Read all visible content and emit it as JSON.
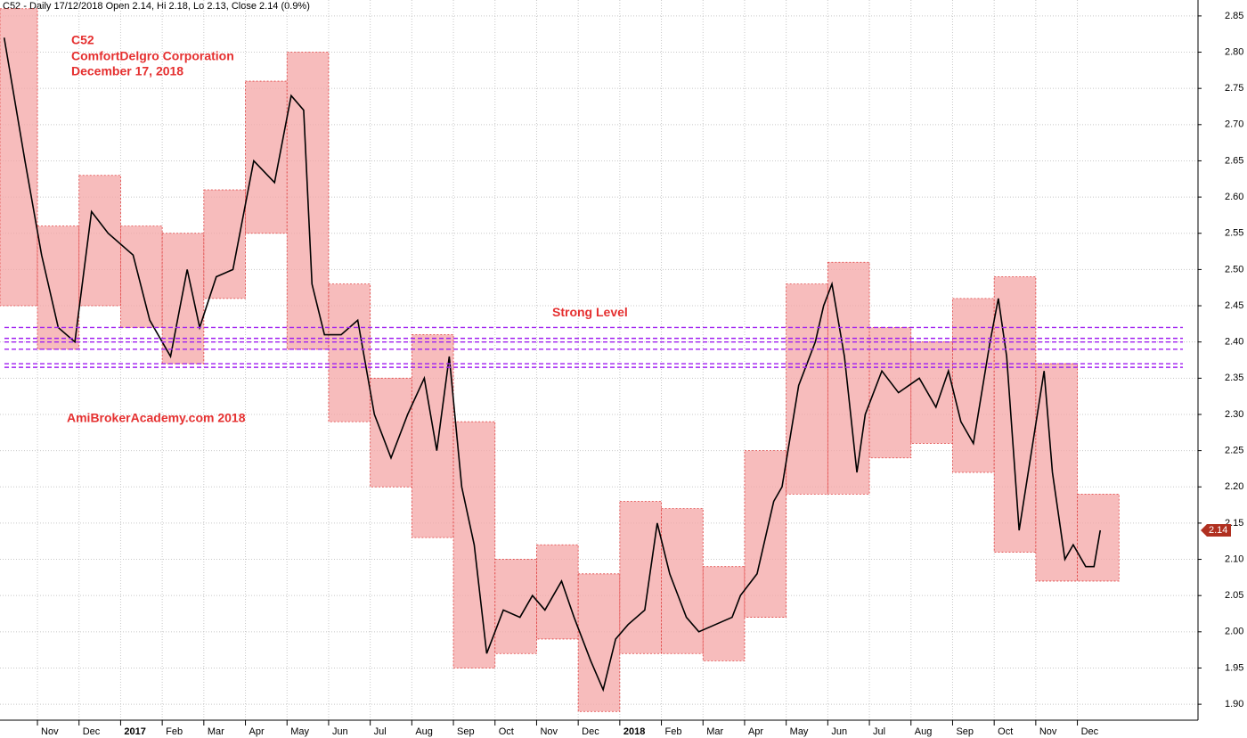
{
  "chart_data": {
    "type": "stock",
    "header": "C52 - Daily 17/12/2018 Open 2.14, Hi 2.18, Lo 2.13, Close 2.14 (0.9%)",
    "annotations": [
      "C52",
      "ComfortDelgro Corporation",
      "December 17, 2018",
      "AmiBrokerAcademy.com  2018"
    ],
    "level_label": "Strong Level",
    "levels": [
      2.42,
      2.405,
      2.4,
      2.39,
      2.37,
      2.365
    ],
    "level_color": "#a020f0",
    "box_color": "#f4a6a6",
    "box_low": [
      2.45,
      2.39,
      2.45,
      2.42,
      2.37,
      2.46,
      2.55,
      2.39,
      2.29,
      2.2,
      2.13,
      1.95,
      1.97,
      1.99,
      1.89,
      1.97,
      1.97,
      1.96,
      2.02,
      2.19,
      2.19,
      2.24,
      2.26,
      2.22,
      2.11,
      2.07,
      2.07
    ],
    "box_high": [
      2.86,
      2.56,
      2.63,
      2.56,
      2.55,
      2.61,
      2.76,
      2.8,
      2.48,
      2.35,
      2.41,
      2.29,
      2.1,
      2.12,
      2.08,
      2.18,
      2.17,
      2.09,
      2.25,
      2.48,
      2.51,
      2.42,
      2.4,
      2.46,
      2.49,
      2.37,
      2.19
    ],
    "x": [
      -0.8,
      -0.3,
      0.1,
      0.5,
      0.9,
      1.3,
      1.7,
      2.3,
      2.7,
      3.2,
      3.6,
      3.9,
      4.3,
      4.7,
      5.2,
      5.7,
      6.1,
      6.4,
      6.6,
      6.9,
      7.3,
      7.7,
      8.1,
      8.5,
      8.9,
      9.3,
      9.6,
      9.9,
      10.2,
      10.5,
      10.8,
      11.2,
      11.6,
      11.9,
      12.2,
      12.6,
      12.9,
      13.3,
      13.6,
      13.9,
      14.2,
      14.6,
      14.9,
      15.2,
      15.6,
      15.9,
      16.3,
      16.7,
      16.9,
      17.3,
      17.7,
      17.9,
      18.3,
      18.7,
      18.9,
      19.1,
      19.4,
      19.7,
      19.9,
      20.3,
      20.7,
      21.2,
      21.6,
      21.9,
      22.2,
      22.5,
      22.9,
      23.1,
      23.3,
      23.6,
      23.9,
      24.2,
      24.4,
      24.7,
      24.9,
      25.2,
      25.4,
      25.55
    ],
    "values": [
      2.82,
      2.65,
      2.52,
      2.42,
      2.4,
      2.58,
      2.55,
      2.52,
      2.43,
      2.38,
      2.5,
      2.42,
      2.49,
      2.5,
      2.65,
      2.62,
      2.74,
      2.72,
      2.48,
      2.41,
      2.41,
      2.43,
      2.3,
      2.24,
      2.3,
      2.35,
      2.25,
      2.38,
      2.2,
      2.12,
      1.97,
      2.03,
      2.02,
      2.05,
      2.03,
      2.07,
      2.02,
      1.96,
      1.92,
      1.99,
      2.01,
      2.03,
      2.15,
      2.08,
      2.02,
      2.0,
      2.01,
      2.02,
      2.05,
      2.08,
      2.18,
      2.2,
      2.34,
      2.4,
      2.45,
      2.48,
      2.38,
      2.22,
      2.3,
      2.36,
      2.33,
      2.35,
      2.31,
      2.36,
      2.29,
      2.26,
      2.4,
      2.46,
      2.38,
      2.14,
      2.25,
      2.36,
      2.22,
      2.1,
      2.12,
      2.09,
      2.09,
      2.14
    ],
    "color": "#000000",
    "last_price": 2.14,
    "last_price_color": "#b03020",
    "xlim": [
      -0.9,
      27.9
    ],
    "xticks": [
      {
        "value": 0,
        "label": "Nov"
      },
      {
        "value": 1,
        "label": "Dec"
      },
      {
        "value": 2,
        "label": "2017"
      },
      {
        "value": 3,
        "label": "Feb"
      },
      {
        "value": 4,
        "label": "Mar"
      },
      {
        "value": 5,
        "label": "Apr"
      },
      {
        "value": 6,
        "label": "May"
      },
      {
        "value": 7,
        "label": "Jun"
      },
      {
        "value": 8,
        "label": "Jul"
      },
      {
        "value": 9,
        "label": "Aug"
      },
      {
        "value": 10,
        "label": "Sep"
      },
      {
        "value": 11,
        "label": "Oct"
      },
      {
        "value": 12,
        "label": "Nov"
      },
      {
        "value": 13,
        "label": "Dec"
      },
      {
        "value": 14,
        "label": "2018"
      },
      {
        "value": 15,
        "label": "Feb"
      },
      {
        "value": 16,
        "label": "Mar"
      },
      {
        "value": 17,
        "label": "Apr"
      },
      {
        "value": 18,
        "label": "May"
      },
      {
        "value": 19,
        "label": "Jun"
      },
      {
        "value": 20,
        "label": "Jul"
      },
      {
        "value": 21,
        "label": "Aug"
      },
      {
        "value": 22,
        "label": "Sep"
      },
      {
        "value": 23,
        "label": "Oct"
      },
      {
        "value": 24,
        "label": "Nov"
      },
      {
        "value": 25,
        "label": "Dec"
      }
    ],
    "ylim": [
      1.878,
      2.872
    ],
    "yticks": [
      {
        "value": 1.9,
        "label": "1.90"
      },
      {
        "value": 1.95,
        "label": "1.95"
      },
      {
        "value": 2.0,
        "label": "2.00"
      },
      {
        "value": 2.05,
        "label": "2.05"
      },
      {
        "value": 2.1,
        "label": "2.10"
      },
      {
        "value": 2.15,
        "label": "2.15"
      },
      {
        "value": 2.2,
        "label": "2.20"
      },
      {
        "value": 2.25,
        "label": "2.25"
      },
      {
        "value": 2.3,
        "label": "2.30"
      },
      {
        "value": 2.35,
        "label": "2.35"
      },
      {
        "value": 2.4,
        "label": "2.40"
      },
      {
        "value": 2.45,
        "label": "2.45"
      },
      {
        "value": 2.5,
        "label": "2.50"
      },
      {
        "value": 2.55,
        "label": "2.55"
      },
      {
        "value": 2.6,
        "label": "2.60"
      },
      {
        "value": 2.65,
        "label": "2.65"
      },
      {
        "value": 2.7,
        "label": "2.70"
      },
      {
        "value": 2.75,
        "label": "2.75"
      },
      {
        "value": 2.8,
        "label": "2.80"
      },
      {
        "value": 2.85,
        "label": "2.85"
      }
    ],
    "grid": true
  }
}
